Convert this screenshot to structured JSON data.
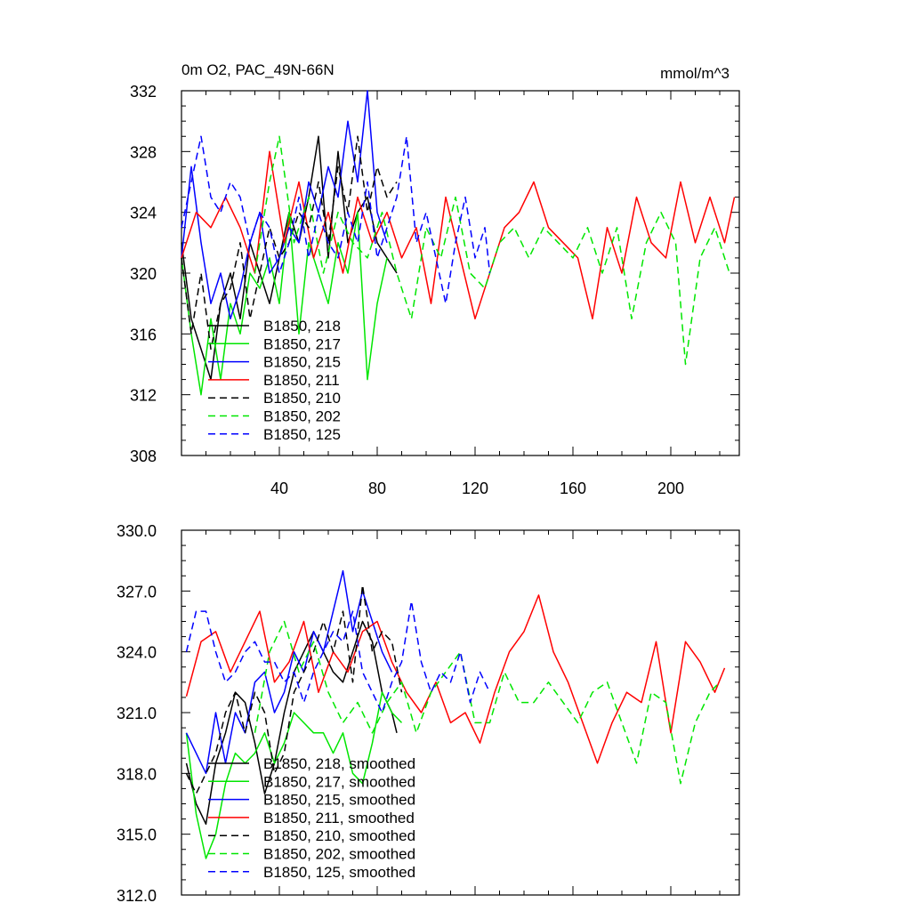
{
  "chart_data": [
    {
      "type": "line",
      "title": "0m O2, PAC_49N-66N",
      "units_label": "mmol/m^3",
      "xlim": [
        0,
        228
      ],
      "ylim": [
        308,
        332
      ],
      "y_ticks": [
        "308",
        "312",
        "316",
        "320",
        "324",
        "328",
        "332"
      ],
      "x_ticks": [
        "40",
        "80",
        "120",
        "160",
        "200"
      ],
      "series": [
        {
          "name": "B1850, 218",
          "color": "#000000",
          "dash": "solid",
          "x": [
            0,
            4,
            8,
            12,
            16,
            20,
            24,
            28,
            32,
            36,
            40,
            44,
            48,
            52,
            56,
            60,
            64,
            68,
            72,
            76,
            80,
            84,
            88
          ],
          "y": [
            322,
            317,
            315,
            313,
            318,
            320,
            317,
            322,
            320,
            318,
            321,
            324,
            322,
            325,
            329,
            321,
            328,
            322,
            324,
            325,
            322,
            321,
            320
          ]
        },
        {
          "name": "B1850, 217",
          "color": "#00e600",
          "dash": "solid",
          "x": [
            0,
            4,
            8,
            12,
            16,
            20,
            24,
            28,
            32,
            36,
            40,
            44,
            48,
            52,
            56,
            60,
            64,
            68,
            72,
            76,
            80,
            84
          ],
          "y": [
            321,
            316,
            312,
            317,
            313,
            318,
            316,
            320,
            319,
            321,
            318,
            324,
            316,
            322,
            320,
            318,
            322,
            320,
            324,
            313,
            318,
            321
          ]
        },
        {
          "name": "B1850, 215",
          "color": "#0000ff",
          "dash": "solid",
          "x": [
            0,
            4,
            8,
            12,
            16,
            20,
            24,
            28,
            32,
            36,
            40,
            44,
            48,
            52,
            56,
            60,
            64,
            68,
            72,
            76,
            80,
            84
          ],
          "y": [
            321,
            327,
            322,
            318,
            320,
            317,
            319,
            322,
            324,
            320,
            321,
            323,
            322,
            326,
            324,
            327,
            325,
            330,
            326,
            332,
            324,
            322
          ]
        },
        {
          "name": "B1850, 211",
          "color": "#ff0000",
          "dash": "solid",
          "x": [
            0,
            6,
            12,
            18,
            24,
            30,
            36,
            42,
            48,
            54,
            60,
            66,
            72,
            78,
            84,
            90,
            96,
            102,
            108,
            114,
            120,
            126,
            132,
            138,
            144,
            150,
            156,
            162,
            168,
            174,
            180,
            186,
            192,
            198,
            204,
            210,
            216,
            222,
            226
          ],
          "y": [
            321,
            324,
            323,
            325,
            323,
            320,
            328,
            322,
            326,
            321,
            324,
            320,
            325,
            322,
            324,
            321,
            323,
            318,
            325,
            321,
            317,
            320,
            323,
            324,
            326,
            323,
            322,
            321,
            317,
            323,
            320,
            325,
            322,
            321,
            326,
            322,
            325,
            322,
            325
          ]
        },
        {
          "name": "B1850, 210",
          "color": "#000000",
          "dash": "dash",
          "x": [
            0,
            4,
            8,
            12,
            16,
            20,
            24,
            28,
            32,
            36,
            40,
            44,
            48,
            52,
            56,
            60,
            64,
            68,
            72,
            76,
            80,
            84,
            88
          ],
          "y": [
            321,
            316,
            320,
            315,
            318,
            319,
            322,
            317,
            320,
            323,
            321,
            322,
            324,
            323,
            326,
            322,
            327,
            324,
            329,
            324,
            327,
            325,
            326
          ]
        },
        {
          "name": "B1850, 202",
          "color": "#00e600",
          "dash": "dash",
          "x": [
            30,
            36,
            40,
            46,
            52,
            58,
            64,
            70,
            76,
            82,
            88,
            94,
            100,
            106,
            112,
            118,
            124,
            130,
            136,
            142,
            148,
            154,
            160,
            166,
            172,
            178,
            184,
            190,
            196,
            202,
            206,
            212,
            218,
            224
          ],
          "y": [
            320,
            326,
            329,
            322,
            325,
            320,
            324,
            322,
            321,
            324,
            320,
            317,
            323,
            321,
            325,
            320,
            319,
            322,
            323,
            321,
            323,
            322,
            321,
            323,
            320,
            323,
            317,
            322,
            324,
            322,
            314,
            321,
            323,
            320
          ]
        },
        {
          "name": "B1850, 125",
          "color": "#0000ff",
          "dash": "dash",
          "x": [
            0,
            4,
            8,
            12,
            16,
            20,
            24,
            28,
            32,
            36,
            40,
            44,
            48,
            52,
            56,
            60,
            64,
            68,
            72,
            76,
            80,
            84,
            88,
            92,
            96,
            100,
            104,
            108,
            112,
            116,
            120,
            124,
            126
          ],
          "y": [
            323,
            326,
            329,
            325,
            324,
            326,
            325,
            322,
            324,
            323,
            320,
            322,
            325,
            321,
            324,
            322,
            321,
            324,
            322,
            326,
            321,
            323,
            325,
            329,
            322,
            324,
            321,
            318,
            322,
            325,
            321,
            323,
            320
          ]
        }
      ]
    },
    {
      "type": "line",
      "title": "",
      "xlim": [
        0,
        228
      ],
      "ylim": [
        312,
        330
      ],
      "y_ticks": [
        "312.0",
        "315.0",
        "318.0",
        "321.0",
        "324.0",
        "327.0",
        "330.0"
      ],
      "series": [
        {
          "name": "B1850, 218, smoothed",
          "color": "#000000",
          "dash": "solid",
          "x": [
            2,
            6,
            10,
            14,
            18,
            22,
            26,
            30,
            34,
            38,
            42,
            46,
            50,
            54,
            58,
            62,
            66,
            70,
            74,
            78,
            82,
            86,
            88
          ],
          "y": [
            318.5,
            316.5,
            315.5,
            318.5,
            320,
            322,
            321.5,
            319.5,
            317,
            318.5,
            321,
            323,
            324,
            325,
            324,
            323,
            322.5,
            324,
            325.5,
            324.5,
            322,
            321,
            320
          ]
        },
        {
          "name": "B1850, 217, smoothed",
          "color": "#00e600",
          "dash": "solid",
          "x": [
            2,
            6,
            10,
            14,
            18,
            22,
            26,
            30,
            34,
            38,
            42,
            46,
            50,
            54,
            58,
            62,
            66,
            70,
            74,
            78,
            82,
            86,
            90
          ],
          "y": [
            320,
            316,
            313.8,
            315,
            317.5,
            319,
            318.5,
            319,
            320,
            318.5,
            319.5,
            321,
            320.5,
            320,
            320,
            319,
            320,
            318,
            317.5,
            319.5,
            322,
            321,
            320.5
          ]
        },
        {
          "name": "B1850, 215, smoothed",
          "color": "#0000ff",
          "dash": "solid",
          "x": [
            2,
            6,
            10,
            14,
            18,
            22,
            26,
            30,
            34,
            38,
            42,
            46,
            50,
            54,
            58,
            62,
            66,
            70,
            74,
            78,
            82,
            86
          ],
          "y": [
            320,
            319,
            318,
            321,
            318.5,
            321,
            320,
            322.5,
            323,
            321,
            322,
            324,
            323,
            325,
            324,
            326,
            328,
            325,
            327,
            325.5,
            324,
            323
          ]
        },
        {
          "name": "B1850, 211, smoothed",
          "color": "#ff0000",
          "dash": "solid",
          "x": [
            2,
            8,
            14,
            20,
            26,
            32,
            38,
            44,
            50,
            56,
            62,
            68,
            74,
            80,
            86,
            92,
            98,
            104,
            110,
            116,
            122,
            128,
            134,
            140,
            146,
            152,
            158,
            164,
            170,
            176,
            182,
            188,
            194,
            200,
            206,
            212,
            218,
            222
          ],
          "y": [
            321.8,
            324.5,
            325,
            323,
            324.5,
            326,
            322.5,
            323.5,
            325.5,
            322,
            324,
            323,
            325,
            325.5,
            323.5,
            322,
            321,
            322.5,
            320.5,
            321,
            319.5,
            322,
            324,
            325,
            326.8,
            324,
            322.5,
            320.5,
            318.5,
            320.5,
            322,
            321.5,
            324.5,
            320,
            324.5,
            323.5,
            322,
            323.2
          ]
        },
        {
          "name": "B1850, 210, smoothed",
          "color": "#000000",
          "dash": "dash",
          "x": [
            2,
            6,
            10,
            14,
            18,
            22,
            26,
            30,
            34,
            38,
            42,
            46,
            50,
            54,
            58,
            62,
            66,
            70,
            74,
            78,
            82,
            86,
            90
          ],
          "y": [
            318,
            317,
            318,
            319,
            321,
            322,
            320,
            322,
            321,
            318,
            319,
            322,
            323,
            324,
            325.5,
            324,
            326,
            322.5,
            327.3,
            324,
            325,
            324.5,
            322
          ]
        },
        {
          "name": "B1850, 202, smoothed",
          "color": "#00e600",
          "dash": "dash",
          "x": [
            30,
            36,
            42,
            48,
            54,
            60,
            66,
            72,
            78,
            84,
            90,
            96,
            102,
            108,
            114,
            120,
            126,
            132,
            138,
            144,
            150,
            156,
            162,
            168,
            174,
            180,
            186,
            192,
            198,
            204,
            210,
            216,
            220
          ],
          "y": [
            320,
            324,
            325.5,
            323,
            324.5,
            322,
            320.5,
            321.5,
            320,
            321.5,
            322.5,
            320,
            322,
            323,
            324,
            320.5,
            320.5,
            323,
            321.5,
            321.5,
            322.5,
            321.5,
            320.5,
            322,
            322.5,
            320.5,
            318.5,
            322,
            321.5,
            317.5,
            320.5,
            322,
            322.5
          ]
        },
        {
          "name": "B1850, 125, smoothed",
          "color": "#0000ff",
          "dash": "dash",
          "x": [
            2,
            6,
            10,
            14,
            18,
            22,
            26,
            30,
            34,
            38,
            42,
            46,
            50,
            54,
            58,
            62,
            66,
            70,
            74,
            78,
            82,
            86,
            90,
            94,
            98,
            102,
            106,
            110,
            114,
            118,
            122,
            126
          ],
          "y": [
            324,
            326,
            326,
            324,
            322.5,
            323,
            324,
            324.5,
            323.5,
            323.5,
            322.5,
            323,
            321.5,
            323,
            324,
            325,
            324.5,
            326,
            323,
            322,
            321,
            322.5,
            323.5,
            326.5,
            323.5,
            322,
            323,
            322.5,
            324,
            321.5,
            323,
            322
          ]
        }
      ]
    }
  ]
}
